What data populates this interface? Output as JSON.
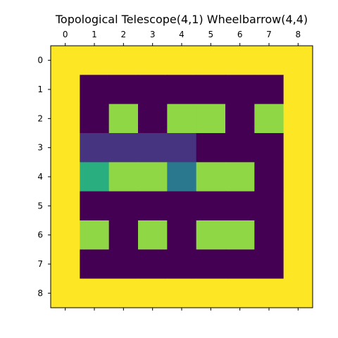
{
  "chart_data": {
    "type": "heatmap",
    "title": "Topological Telescope(4,1) Wheelbarrow(4,4)",
    "x_ticks": [
      "0",
      "1",
      "2",
      "3",
      "4",
      "5",
      "6",
      "7",
      "8"
    ],
    "y_ticks": [
      "0",
      "1",
      "2",
      "3",
      "4",
      "5",
      "6",
      "7",
      "8"
    ],
    "colormap": "viridis",
    "value_range": [
      0,
      4
    ],
    "grid": false,
    "x_axis_position": "top",
    "matrix": [
      [
        4,
        4,
        4,
        4,
        4,
        4,
        4,
        4,
        4
      ],
      [
        4,
        0,
        0,
        0,
        0,
        0,
        0,
        0,
        4
      ],
      [
        4,
        0,
        3,
        0,
        3,
        3,
        0,
        3,
        4
      ],
      [
        4,
        0.5,
        0.5,
        0.5,
        0.5,
        0,
        0,
        0,
        4
      ],
      [
        4,
        2.4,
        3,
        3,
        1.5,
        3,
        3,
        0,
        4
      ],
      [
        4,
        0,
        0,
        0,
        0,
        0,
        0,
        0,
        4
      ],
      [
        4,
        3,
        0,
        3,
        0,
        3,
        3,
        0,
        4
      ],
      [
        4,
        0,
        0,
        0,
        0,
        0,
        0,
        0,
        4
      ],
      [
        4,
        4,
        4,
        4,
        4,
        4,
        4,
        4,
        4
      ]
    ],
    "colors": {
      "yellow": "#fde725",
      "dark-purple": "#440154",
      "green": "#8fd744",
      "indigo": "#463480",
      "teal": "#2a788e",
      "aqua-green": "#29af7f"
    }
  }
}
